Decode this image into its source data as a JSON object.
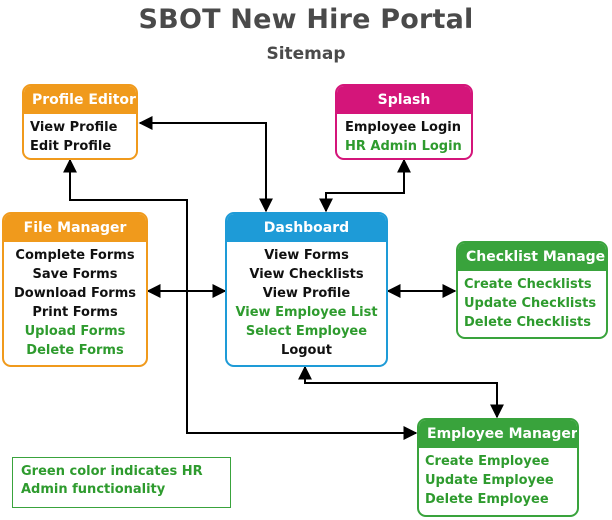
{
  "header": {
    "title": "SBOT New Hire Portal",
    "subtitle": "Sitemap"
  },
  "colors": {
    "orange": "#f09a1c",
    "magenta": "#d4157a",
    "blue": "#1e9bd7",
    "green": "#39a33c",
    "hr_text": "#2e9b2e"
  },
  "nodes": {
    "profile_editor": {
      "title": "Profile Editor",
      "items": [
        "View Profile",
        "Edit Profile"
      ]
    },
    "splash": {
      "title": "Splash",
      "items": [
        "Employee Login",
        "HR Admin Login"
      ]
    },
    "file_manager": {
      "title": "File Manager",
      "items": [
        "Complete Forms",
        "Save Forms",
        "Download Forms",
        "Print Forms",
        "Upload Forms",
        "Delete Forms"
      ]
    },
    "dashboard": {
      "title": "Dashboard",
      "items": [
        "View Forms",
        "View Checklists",
        "View Profile",
        "View Employee List",
        "Select Employee",
        "Logout"
      ]
    },
    "checklist_manager": {
      "title": "Checklist Manager",
      "items": [
        "Create Checklists",
        "Update Checklists",
        "Delete Checklists"
      ]
    },
    "employee_manager": {
      "title": "Employee Manager",
      "items": [
        "Create Employee",
        "Update Employee",
        "Delete Employee"
      ]
    }
  },
  "legend": {
    "text": "Green color indicates HR Admin functionality"
  }
}
